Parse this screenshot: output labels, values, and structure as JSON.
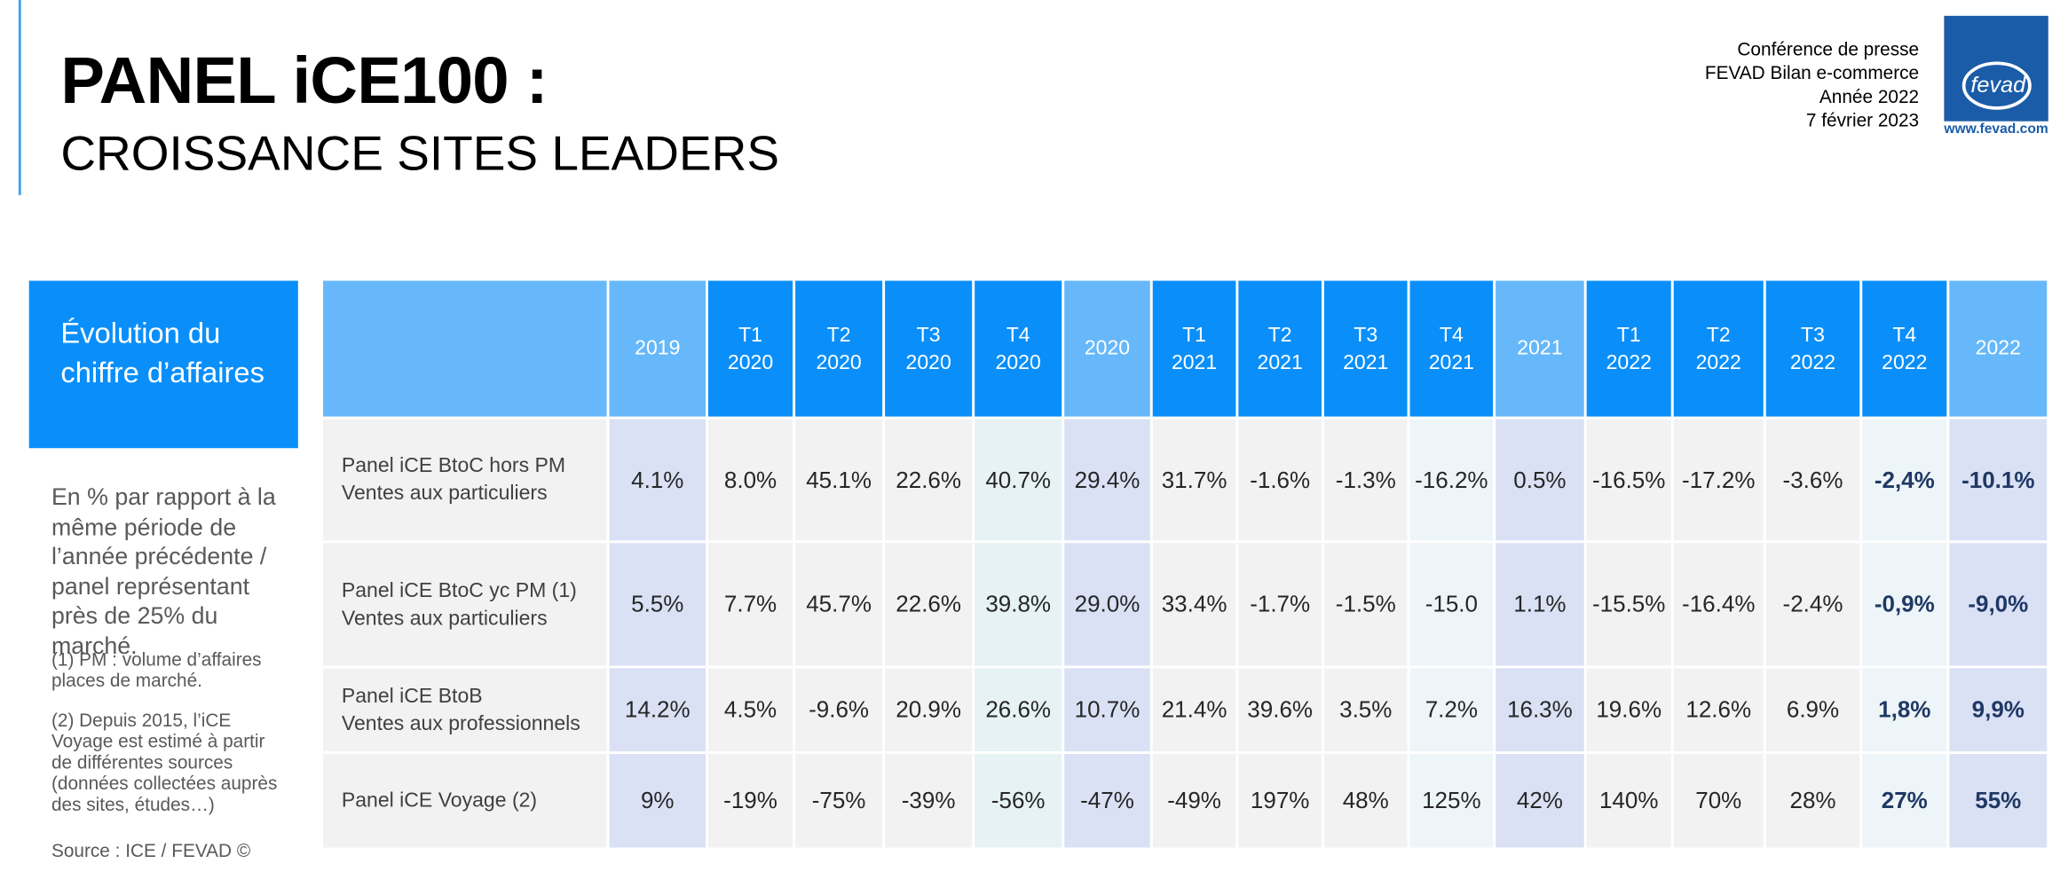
{
  "header": {
    "title": "PANEL iCE100 :",
    "subtitle": "CROISSANCE SITES LEADERS",
    "conference": [
      "Conférence de presse",
      "FEVAD Bilan e-commerce",
      "Année 2022",
      "7 février 2023"
    ],
    "logo": "fevad",
    "logo_url": "www.fevad.com"
  },
  "side_box": {
    "title": "Évolution du chiffre d’affaires"
  },
  "description": "En % par rapport à la même période de l’année précédente / panel représentant près de 25% du marché.",
  "notes": [
    "(1) PM : volume d’affaires places de marché.",
    "(2) Depuis 2015, l’iCE Voyage est estimé à partir de différentes sources (données collectées auprès des sites, études…)"
  ],
  "source": "Source : ICE / FEVAD ©",
  "table": {
    "columns": [
      "2019",
      "T1 2020",
      "T2 2020",
      "T3 2020",
      "T4 2020",
      "2020",
      "T1 2021",
      "T2 2021",
      "T3 2021",
      "T4 2021",
      "2021",
      "T1 2022",
      "T2 2022",
      "T3 2022",
      "T4 2022",
      "2022"
    ],
    "rows": [
      {
        "label": [
          "Panel iCE BtoC hors PM",
          "Ventes aux particuliers"
        ],
        "values": [
          "4.1%",
          "8.0%",
          "45.1%",
          "22.6%",
          "40.7%",
          "29.4%",
          "31.7%",
          "-1.6%",
          "-1.3%",
          "-16.2%",
          "0.5%",
          "-16.5%",
          "-17.2%",
          "-3.6%",
          "-2,4%",
          "-10.1%"
        ]
      },
      {
        "label": [
          "Panel iCE BtoC yc PM (1)",
          "Ventes aux particuliers"
        ],
        "values": [
          "5.5%",
          "7.7%",
          "45.7%",
          "22.6%",
          "39.8%",
          "29.0%",
          "33.4%",
          "-1.7%",
          "-1.5%",
          "-15.0",
          "1.1%",
          "-15.5%",
          "-16.4%",
          "-2.4%",
          "-0,9%",
          "-9,0%"
        ]
      },
      {
        "label": [
          "Panel iCE BtoB",
          "Ventes aux professionnels"
        ],
        "values": [
          "14.2%",
          "4.5%",
          "-9.6%",
          "20.9%",
          "26.6%",
          "10.7%",
          "21.4%",
          "39.6%",
          "3.5%",
          "7.2%",
          "16.3%",
          "19.6%",
          "12.6%",
          "6.9%",
          "1,8%",
          "9,9%"
        ]
      },
      {
        "label": [
          "Panel iCE Voyage (2)"
        ],
        "values": [
          "9%",
          "-19%",
          "-75%",
          "-39%",
          "-56%",
          "-47%",
          "-49%",
          "197%",
          "48%",
          "125%",
          "42%",
          "140%",
          "70%",
          "28%",
          "27%",
          "55%"
        ]
      }
    ]
  }
}
